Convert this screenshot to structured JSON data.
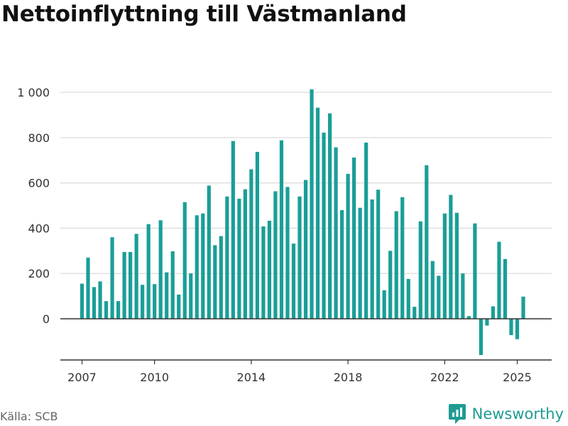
{
  "title": "Nettoinflyttning till Västmanland",
  "source": "Källa: SCB",
  "brand": {
    "name": "Newsworthy",
    "icon": "newsworthy-logo-icon"
  },
  "colors": {
    "bar": "#1a9e97",
    "grid": "#d9d9d9",
    "zero_line": "#333333",
    "brand": "#1f9b93"
  },
  "chart_data": {
    "type": "bar",
    "title": "Nettoinflyttning till Västmanland",
    "xlabel": "",
    "ylabel": "",
    "frequency": "quarterly",
    "start": "2007Q1",
    "ylim": [
      -165,
      1020
    ],
    "yticks": [
      0,
      200,
      400,
      600,
      800,
      1000
    ],
    "ytick_labels": [
      "0",
      "200",
      "400",
      "600",
      "800",
      "1 000"
    ],
    "xticks": [
      "2007",
      "2010",
      "2014",
      "2018",
      "2022",
      "2025"
    ],
    "grid": true,
    "values": [
      155,
      270,
      140,
      165,
      78,
      360,
      78,
      295,
      295,
      375,
      150,
      418,
      153,
      435,
      205,
      298,
      107,
      515,
      200,
      457,
      465,
      588,
      325,
      365,
      540,
      785,
      530,
      572,
      660,
      737,
      408,
      433,
      563,
      788,
      582,
      332,
      540,
      613,
      1013,
      932,
      822,
      907,
      757,
      480,
      640,
      712,
      490,
      778,
      527,
      570,
      126,
      300,
      475,
      537,
      176,
      53,
      430,
      678,
      255,
      190,
      465,
      547,
      468,
      200,
      12,
      421,
      -160,
      -30,
      55,
      340,
      264,
      -72,
      -90,
      98
    ]
  }
}
